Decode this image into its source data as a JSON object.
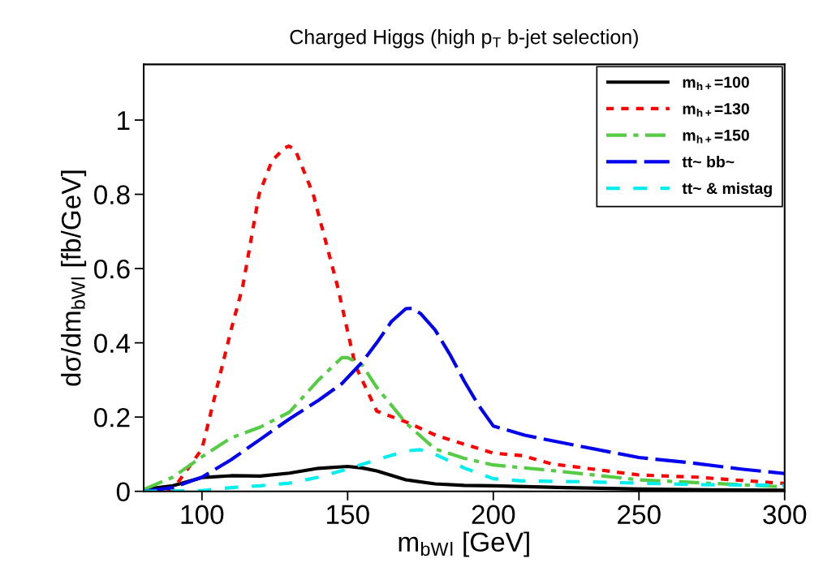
{
  "chart_data": {
    "type": "line",
    "title": "Charged Higgs (high p$_{T}$ b-jet selection)",
    "xlabel": "m$_{bW}$$_{l}$ [GeV]",
    "ylabel": "dσ/dm$_{bW}$$_{l}$ [fb/GeV]",
    "xlim": [
      80,
      300
    ],
    "ylim": [
      0,
      1.15
    ],
    "xticks": [
      100,
      150,
      200,
      250,
      300
    ],
    "yticks": [
      0,
      0.2,
      0.4,
      0.6,
      0.8,
      1
    ],
    "grid": false,
    "legend": "top right",
    "series": [
      {
        "name": "m$_{h+}$=100",
        "color": "#000000",
        "line_style": "solid",
        "x": [
          80,
          90,
          100,
          110,
          120,
          130,
          140,
          150,
          155,
          160,
          170,
          180,
          190,
          200,
          225,
          250,
          275,
          300
        ],
        "values": [
          0.005,
          0.015,
          0.037,
          0.042,
          0.041,
          0.049,
          0.062,
          0.067,
          0.063,
          0.055,
          0.031,
          0.02,
          0.016,
          0.015,
          0.01,
          0.006,
          0.004,
          0.003
        ]
      },
      {
        "name": "m$_{h+}$=130",
        "color": "#ff0000",
        "line_style": "dotted",
        "x": [
          88,
          90,
          96,
          100,
          105,
          110,
          114,
          119.6,
          124,
          128.4,
          129.8,
          132,
          138.2,
          146.6,
          152.6,
          160,
          170,
          180.5,
          200,
          210,
          220,
          250,
          270,
          300
        ],
        "values": [
          0,
          0.005,
          0.07,
          0.114,
          0.275,
          0.435,
          0.552,
          0.8,
          0.89,
          0.925,
          0.93,
          0.92,
          0.8,
          0.55,
          0.34,
          0.216,
          0.187,
          0.15,
          0.103,
          0.096,
          0.074,
          0.044,
          0.038,
          0.021
        ]
      },
      {
        "name": "m$_{h+}$=150",
        "color": "#55cc44",
        "line_style": "dashdot",
        "x": [
          80,
          90,
          100,
          110,
          120,
          130,
          140,
          148,
          150,
          155,
          160,
          170,
          180,
          190,
          200,
          220,
          250,
          300
        ],
        "values": [
          0.005,
          0.038,
          0.093,
          0.144,
          0.173,
          0.213,
          0.3,
          0.36,
          0.36,
          0.34,
          0.28,
          0.184,
          0.114,
          0.089,
          0.071,
          0.056,
          0.031,
          0.012
        ]
      },
      {
        "name": "tt~ bb~",
        "color": "#0000ee",
        "line_style": "longdash",
        "x": [
          80,
          90,
          100,
          110,
          120,
          130,
          140,
          148,
          155,
          160,
          165,
          170,
          172,
          175,
          180,
          185,
          190,
          195,
          200,
          210.8,
          229.4,
          250,
          266.5,
          285,
          300
        ],
        "values": [
          0,
          0.01,
          0.038,
          0.085,
          0.14,
          0.195,
          0.245,
          0.29,
          0.348,
          0.4,
          0.457,
          0.492,
          0.493,
          0.479,
          0.435,
          0.37,
          0.297,
          0.231,
          0.176,
          0.151,
          0.122,
          0.091,
          0.078,
          0.06,
          0.048
        ]
      },
      {
        "name": "tt~ & mistag",
        "color": "#00eeee",
        "line_style": "dashed",
        "x": [
          80,
          100,
          110,
          120,
          130,
          140,
          150,
          160,
          170,
          175,
          180,
          190,
          200,
          210,
          230,
          250,
          270,
          300
        ],
        "values": [
          0,
          0.002,
          0.01,
          0.015,
          0.022,
          0.038,
          0.06,
          0.085,
          0.109,
          0.112,
          0.1,
          0.063,
          0.034,
          0.028,
          0.026,
          0.022,
          0.018,
          0.016
        ]
      }
    ]
  }
}
